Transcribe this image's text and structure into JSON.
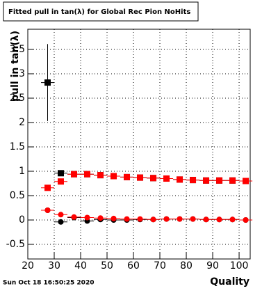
{
  "chart_data": {
    "type": "scatter",
    "title": "Fitted pull in tan(λ) for Global Rec Pion NoHits",
    "x_label": "Quality",
    "y_label": "pull in tan(λ)",
    "timestamp": "Sun Oct 18 16:50:25 2020",
    "x": [
      27.5,
      32.5,
      37.5,
      42.5,
      47.5,
      52.5,
      57.5,
      62.5,
      67.5,
      72.5,
      77.5,
      82.5,
      87.5,
      92.5,
      97.5,
      102.5
    ],
    "xerr": 2.5,
    "series": [
      {
        "name": "black-square",
        "color": "#000000",
        "marker": "square",
        "values": [
          2.82,
          0.96,
          0.94,
          0.94,
          0.92,
          0.9,
          0.88,
          0.87,
          0.86,
          0.85,
          0.83,
          0.82,
          0.81,
          0.81,
          0.81,
          0.8
        ],
        "errors": [
          0.79,
          0.02,
          0.02,
          0.02,
          0.02,
          0.02,
          0.02,
          0.02,
          0.02,
          0.02,
          0.02,
          0.02,
          0.02,
          0.02,
          0.02,
          0.02
        ]
      },
      {
        "name": "red-square",
        "color": "#ff0000",
        "marker": "square",
        "values": [
          0.66,
          0.79,
          0.94,
          0.94,
          0.92,
          0.9,
          0.88,
          0.87,
          0.86,
          0.85,
          0.83,
          0.82,
          0.81,
          0.81,
          0.81,
          0.8
        ]
      },
      {
        "name": "black-circle",
        "color": "#000000",
        "marker": "circle",
        "values": [
          0.2,
          -0.04,
          0.05,
          -0.02,
          0.01,
          0.0,
          0.0,
          0.01,
          0.01,
          0.02,
          0.02,
          0.02,
          0.01,
          0.01,
          0.01,
          0.0
        ]
      },
      {
        "name": "red-circle",
        "color": "#ff0000",
        "marker": "circle",
        "values": [
          0.2,
          0.11,
          0.06,
          0.05,
          0.04,
          0.03,
          0.02,
          0.02,
          0.01,
          0.02,
          0.02,
          0.02,
          0.01,
          0.01,
          0.01,
          0.0
        ]
      }
    ],
    "xlim": [
      20,
      104.2
    ],
    "ylim": [
      -0.8,
      3.914
    ],
    "xticks": [
      20,
      30,
      40,
      50,
      60,
      70,
      80,
      90,
      100
    ],
    "yticks": [
      -0.5,
      0,
      0.5,
      1,
      1.5,
      2,
      2.5,
      3,
      3.5
    ],
    "grid": true
  }
}
